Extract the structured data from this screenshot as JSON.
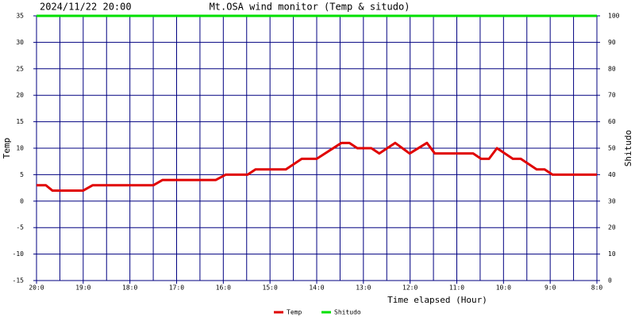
{
  "chart_data": {
    "type": "line",
    "timestamp": "2024/11/22 20:00",
    "title": "Mt.OSA wind monitor (Temp & situdo)",
    "x_label": "Time elapsed (Hour)",
    "y_label": "Temp",
    "y2_label": "Shitudo",
    "xlim": [
      0,
      12
    ],
    "xticks": [
      {
        "value": 0,
        "label": "20:0"
      },
      {
        "value": 1,
        "label": "19:0"
      },
      {
        "value": 2,
        "label": "18:0"
      },
      {
        "value": 3,
        "label": "17:0"
      },
      {
        "value": 4,
        "label": "16:0"
      },
      {
        "value": 5,
        "label": "15:0"
      },
      {
        "value": 6,
        "label": "14:0"
      },
      {
        "value": 7,
        "label": "13:0"
      },
      {
        "value": 8,
        "label": "12:0"
      },
      {
        "value": 9,
        "label": "11:0"
      },
      {
        "value": 10,
        "label": "10:0"
      },
      {
        "value": 11,
        "label": "9:0"
      },
      {
        "value": 12,
        "label": "8:0"
      }
    ],
    "xminor_ticks": [
      0.5,
      1.5,
      2.5,
      3.5,
      4.5,
      5.5,
      6.5,
      7.5,
      8.5,
      9.5,
      10.5,
      11.5
    ],
    "ylim": [
      -15,
      35
    ],
    "yticks": [
      -15,
      -10,
      -5,
      0,
      5,
      10,
      15,
      20,
      25,
      30,
      35
    ],
    "y2lim": [
      0,
      100
    ],
    "y2ticks": [
      0,
      10,
      20,
      30,
      40,
      50,
      60,
      70,
      80,
      90,
      100
    ],
    "grid": true,
    "grid_color": "#000080",
    "series": [
      {
        "name": "Temp",
        "color": "#e00000",
        "x": [
          0,
          0.2,
          0.34,
          1.0,
          1.2,
          2.5,
          2.7,
          3.84,
          4.05,
          4.52,
          4.69,
          5.34,
          5.68,
          6.0,
          6.53,
          6.7,
          6.87,
          7.17,
          7.34,
          7.68,
          7.99,
          8.36,
          8.53,
          9.35,
          9.52,
          9.69,
          9.86,
          10.2,
          10.37,
          10.71,
          10.88,
          11.05,
          12
        ],
        "values": [
          3,
          3,
          2,
          2,
          3,
          3,
          4,
          4,
          5,
          5,
          6,
          6,
          8,
          8,
          11,
          11,
          10,
          10,
          9,
          11,
          9,
          11,
          9,
          9,
          8,
          8,
          10,
          8,
          8,
          6,
          6,
          5,
          5
        ]
      },
      {
        "name": "Shitudo",
        "color": "#00e000",
        "axis": "y2",
        "x": [
          0,
          12
        ],
        "values": [
          100,
          100
        ]
      }
    ]
  }
}
